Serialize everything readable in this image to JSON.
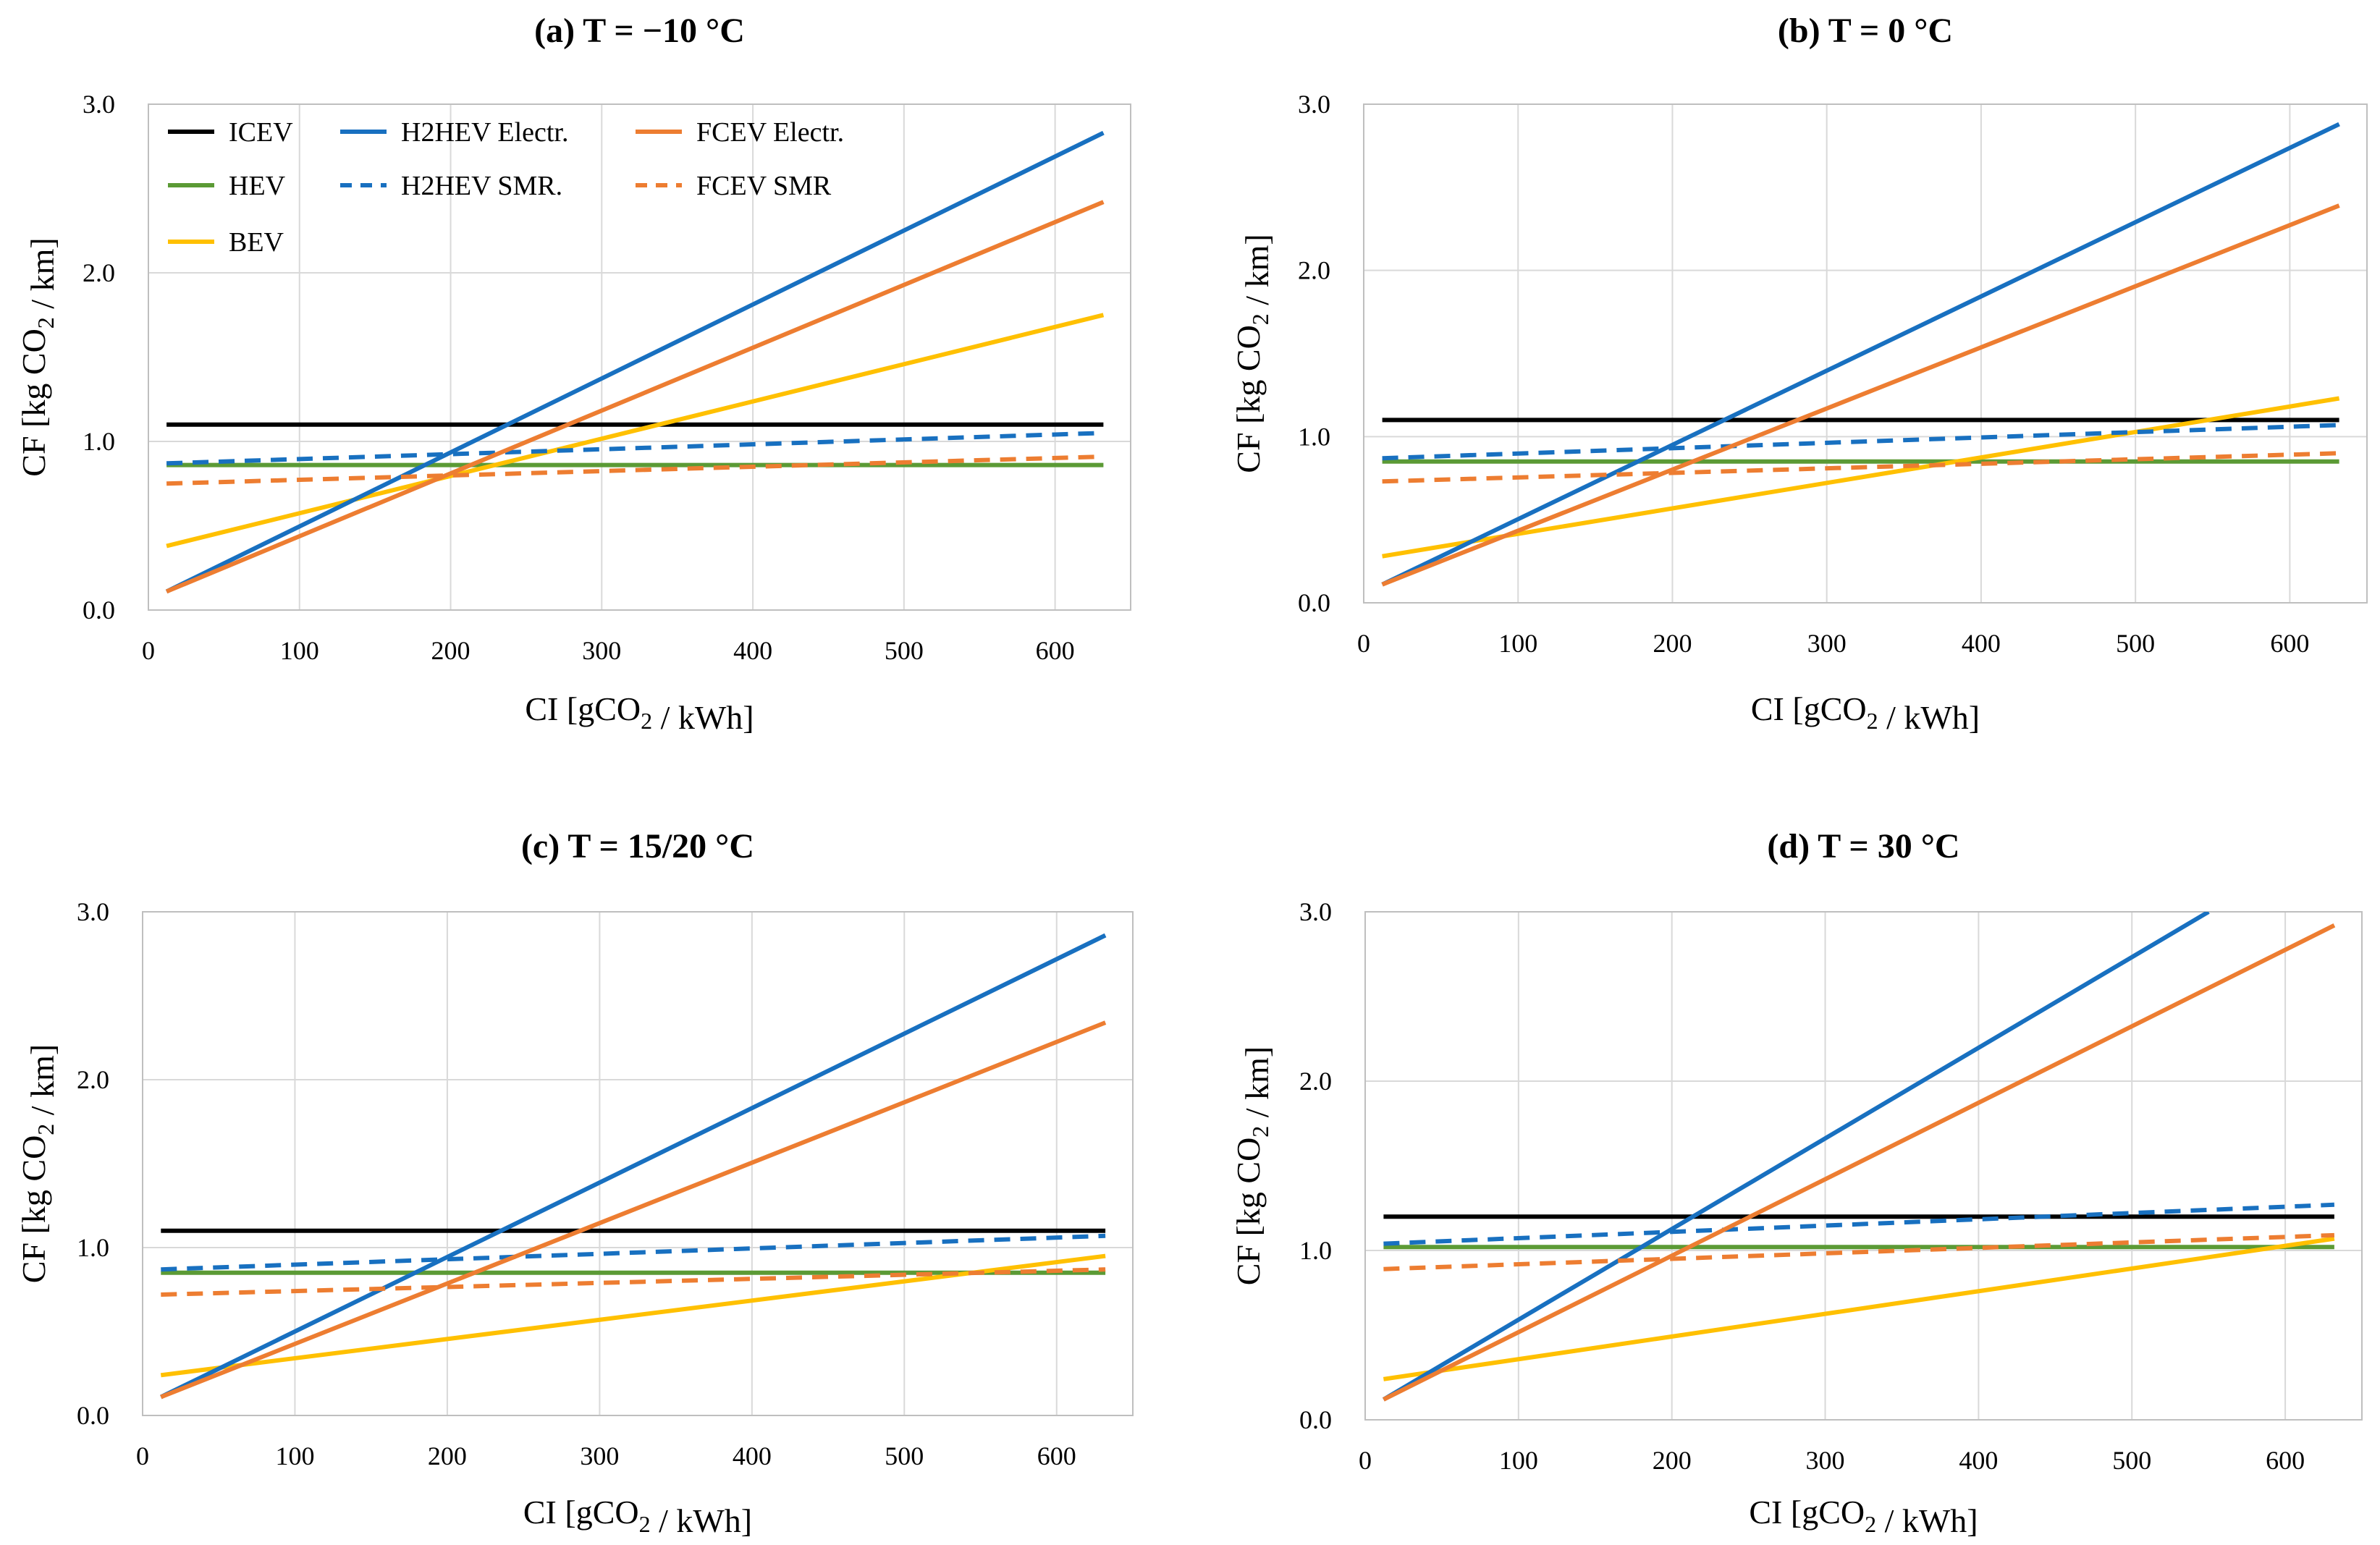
{
  "chart_data": [
    {
      "type": "line",
      "title": "(a) T = −10 °C",
      "xlabel": "CI [gCO2 / kWh]",
      "ylabel": "CF [kg CO2 / km]",
      "xlim": [
        0,
        650
      ],
      "ylim": [
        0,
        3.0
      ],
      "xticks": [
        "0",
        "100",
        "200",
        "300",
        "400",
        "500",
        "600"
      ],
      "yticks": [
        "0.0",
        "1.0",
        "2.0",
        "3.0"
      ],
      "series": [
        {
          "name": "ICEV",
          "x": [
            12,
            632
          ],
          "y": [
            1.1,
            1.1
          ]
        },
        {
          "name": "HEV",
          "x": [
            12,
            632
          ],
          "y": [
            0.86,
            0.86
          ]
        },
        {
          "name": "BEV",
          "x": [
            12,
            632
          ],
          "y": [
            0.38,
            1.75
          ]
        },
        {
          "name": "H2HEV Electr.",
          "x": [
            12,
            632
          ],
          "y": [
            0.11,
            2.83
          ]
        },
        {
          "name": "H2HEV SMR.",
          "x": [
            12,
            632
          ],
          "y": [
            0.87,
            1.05
          ]
        },
        {
          "name": "FCEV Electr.",
          "x": [
            12,
            632
          ],
          "y": [
            0.11,
            2.42
          ]
        },
        {
          "name": "FCEV SMR",
          "x": [
            12,
            632
          ],
          "y": [
            0.75,
            0.91
          ]
        }
      ],
      "legend": "top-left"
    },
    {
      "type": "line",
      "title": "(b) T = 0 °C",
      "xlabel": "CI [gCO2 / kWh]",
      "ylabel": "CF [kg CO2 / km]",
      "xlim": [
        0,
        650
      ],
      "ylim": [
        0,
        3.0
      ],
      "xticks": [
        "0",
        "100",
        "200",
        "300",
        "400",
        "500",
        "600"
      ],
      "yticks": [
        "0.0",
        "1.0",
        "2.0",
        "3.0"
      ],
      "series": [
        {
          "name": "ICEV",
          "x": [
            12,
            632
          ],
          "y": [
            1.1,
            1.1
          ]
        },
        {
          "name": "HEV",
          "x": [
            12,
            632
          ],
          "y": [
            0.85,
            0.85
          ]
        },
        {
          "name": "BEV",
          "x": [
            12,
            632
          ],
          "y": [
            0.28,
            1.23
          ]
        },
        {
          "name": "H2HEV Electr.",
          "x": [
            12,
            632
          ],
          "y": [
            0.11,
            2.88
          ]
        },
        {
          "name": "H2HEV SMR.",
          "x": [
            12,
            632
          ],
          "y": [
            0.87,
            1.07
          ]
        },
        {
          "name": "FCEV Electr.",
          "x": [
            12,
            632
          ],
          "y": [
            0.11,
            2.39
          ]
        },
        {
          "name": "FCEV SMR",
          "x": [
            12,
            632
          ],
          "y": [
            0.73,
            0.9
          ]
        }
      ]
    },
    {
      "type": "line",
      "title": "(c) T = 15/20 °C",
      "xlabel": "CI [gCO2 / kWh]",
      "ylabel": "CF [kg CO2 / km]",
      "xlim": [
        0,
        650
      ],
      "ylim": [
        0,
        3.0
      ],
      "xticks": [
        "0",
        "100",
        "200",
        "300",
        "400",
        "500",
        "600"
      ],
      "yticks": [
        "0.0",
        "1.0",
        "2.0",
        "3.0"
      ],
      "series": [
        {
          "name": "ICEV",
          "x": [
            12,
            632
          ],
          "y": [
            1.1,
            1.1
          ]
        },
        {
          "name": "HEV",
          "x": [
            12,
            632
          ],
          "y": [
            0.85,
            0.85
          ]
        },
        {
          "name": "BEV",
          "x": [
            12,
            632
          ],
          "y": [
            0.24,
            0.95
          ]
        },
        {
          "name": "H2HEV Electr.",
          "x": [
            12,
            632
          ],
          "y": [
            0.11,
            2.86
          ]
        },
        {
          "name": "H2HEV SMR.",
          "x": [
            12,
            632
          ],
          "y": [
            0.87,
            1.07
          ]
        },
        {
          "name": "FCEV Electr.",
          "x": [
            12,
            632
          ],
          "y": [
            0.11,
            2.34
          ]
        },
        {
          "name": "FCEV SMR",
          "x": [
            12,
            632
          ],
          "y": [
            0.72,
            0.87
          ]
        }
      ]
    },
    {
      "type": "line",
      "title": "(d) T = 30 °C",
      "xlabel": "CI [gCO2 / kWh]",
      "ylabel": "CF [kg CO2 / km]",
      "xlim": [
        0,
        650
      ],
      "ylim": [
        0,
        3.0
      ],
      "xticks": [
        "0",
        "100",
        "200",
        "300",
        "400",
        "500",
        "600"
      ],
      "yticks": [
        "0.0",
        "1.0",
        "2.0",
        "3.0"
      ],
      "series": [
        {
          "name": "ICEV",
          "x": [
            12,
            632
          ],
          "y": [
            1.2,
            1.2
          ]
        },
        {
          "name": "HEV",
          "x": [
            12,
            632
          ],
          "y": [
            1.02,
            1.02
          ]
        },
        {
          "name": "BEV",
          "x": [
            12,
            632
          ],
          "y": [
            0.24,
            1.07
          ]
        },
        {
          "name": "H2HEV Electr.",
          "x": [
            12,
            550
          ],
          "y": [
            0.12,
            3.0
          ]
        },
        {
          "name": "H2HEV SMR.",
          "x": [
            12,
            632
          ],
          "y": [
            1.04,
            1.27
          ]
        },
        {
          "name": "FCEV Electr.",
          "x": [
            12,
            632
          ],
          "y": [
            0.12,
            2.92
          ]
        },
        {
          "name": "FCEV SMR",
          "x": [
            12,
            632
          ],
          "y": [
            0.89,
            1.09
          ]
        }
      ]
    }
  ],
  "styles": {
    "ICEV": {
      "color": "#000000",
      "dash": false
    },
    "HEV": {
      "color": "#5B9A35",
      "dash": false
    },
    "BEV": {
      "color": "#FFC000",
      "dash": false
    },
    "H2HEV Electr.": {
      "color": "#1870C0",
      "dash": false
    },
    "H2HEV SMR.": {
      "color": "#1870C0",
      "dash": true
    },
    "FCEV Electr.": {
      "color": "#ED7D31",
      "dash": false
    },
    "FCEV SMR": {
      "color": "#ED7D31",
      "dash": true
    }
  },
  "grid_color": "#d9d9d9"
}
